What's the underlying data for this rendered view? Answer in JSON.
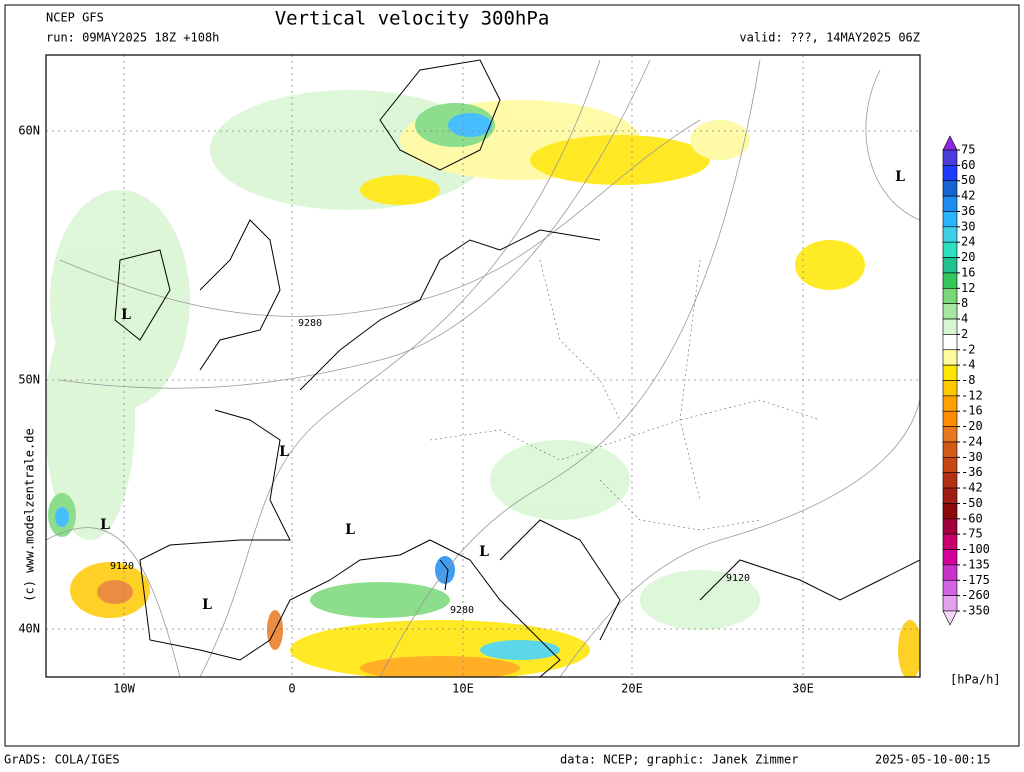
{
  "header": {
    "model": "NCEP GFS",
    "run": "run: 09MAY2025 18Z +108h",
    "title": "Vertical velocity 300hPa",
    "valid": "valid: ???, 14MAY2025 06Z"
  },
  "map": {
    "lat_labels": [
      "60N",
      "50N",
      "40N"
    ],
    "lon_labels": [
      "10W",
      "0",
      "10E",
      "20E",
      "30E"
    ],
    "lows": [
      "L",
      "L",
      "L",
      "L",
      "L",
      "L",
      "L"
    ],
    "contour_labels": [
      "9280",
      "9280",
      "9120",
      "9120"
    ],
    "copyright": "(c) www.modelzentrale.de"
  },
  "colorbar": {
    "levels": [
      75,
      60,
      50,
      42,
      36,
      30,
      24,
      20,
      16,
      12,
      8,
      4,
      2,
      -2,
      -4,
      -8,
      -12,
      -16,
      -20,
      -24,
      -30,
      -36,
      -42,
      -50,
      -60,
      -75,
      -100,
      -135,
      -175,
      -260,
      -350
    ],
    "colors": [
      "#8c28e6",
      "#4b3cdc",
      "#1e3cff",
      "#1464d2",
      "#1e8cf0",
      "#28b4ff",
      "#40d0e6",
      "#2ce0c0",
      "#20c090",
      "#34c85a",
      "#78d878",
      "#a8e8a0",
      "#d8f5d2",
      "#ffffff",
      "#fffa9a",
      "#ffe600",
      "#ffc800",
      "#ffa000",
      "#ff8c00",
      "#e87820",
      "#d25a14",
      "#c84614",
      "#b43214",
      "#a01e14",
      "#8c0a0a",
      "#a0003c",
      "#c8006e",
      "#d2009a",
      "#c832c8",
      "#d264e6",
      "#e6a0f0",
      "#f5d8f8"
    ],
    "unit": "[hPa/h]"
  },
  "footer": {
    "software": "GrADS: COLA/IGES",
    "credits": "data: NCEP; graphic: Janek Zimmer",
    "timestamp": "2025-05-10-00:15"
  }
}
